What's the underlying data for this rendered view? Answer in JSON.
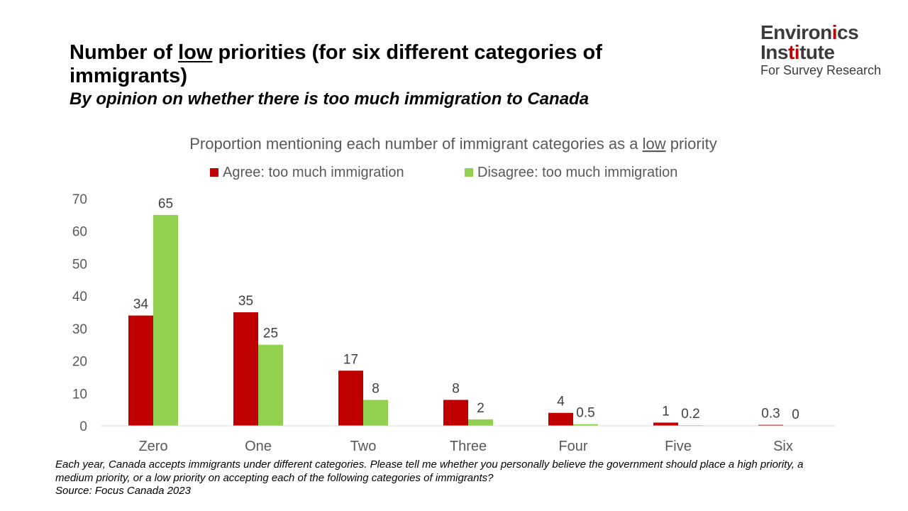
{
  "header": {
    "title_before": "Number of ",
    "title_underlined": "low",
    "title_after": " priorities (for six different categories of immigrants)",
    "subtitle": "By opinion on whether there is too much immigration to Canada"
  },
  "logo": {
    "line1_part1": "Environ",
    "line1_highlight": "i",
    "line1_part2": "cs",
    "line2_part1": "Ins",
    "line2_highlight": "ti",
    "line2_part2": "tute",
    "line3": "For Survey Research"
  },
  "chart_data": {
    "type": "bar",
    "title_before": "Proportion mentioning each number of immigrant categories as a ",
    "title_underlined": "low",
    "title_after": " priority",
    "categories": [
      "Zero",
      "One",
      "Two",
      "Three",
      "Four",
      "Five",
      "Six"
    ],
    "series": [
      {
        "name": "Agree: too much immigration",
        "color": "#c00000",
        "values": [
          34,
          35,
          17,
          8,
          4,
          1,
          0.3
        ]
      },
      {
        "name": "Disagree: too much immigration",
        "color": "#92d050",
        "values": [
          65,
          25,
          8,
          2,
          0.5,
          0.2,
          0
        ]
      }
    ],
    "ylim": [
      0,
      70
    ],
    "yticks": [
      0,
      10,
      20,
      30,
      40,
      50,
      60,
      70
    ],
    "legend_position": "top",
    "grid": false
  },
  "footnote": "Each year, Canada accepts immigrants under different categories. Please tell me whether you personally believe the government should place a high priority, a medium priority, or a low priority on accepting each of the following categories of immigrants?",
  "source": "Source: Focus Canada 2023"
}
